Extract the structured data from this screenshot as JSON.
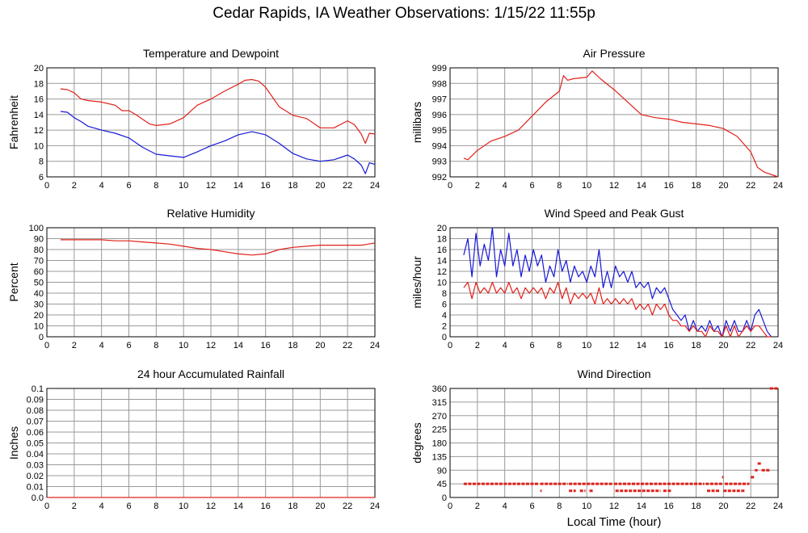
{
  "page_title": "Cedar Rapids, IA Weather Observations: 1/15/22 11:55p",
  "colors": {
    "red": "#e0201a",
    "blue": "#1818d8",
    "grid": "#9a9a9a",
    "frame": "#000000"
  },
  "chart_data": [
    {
      "id": "temp",
      "type": "line",
      "title": "Temperature and Dewpoint",
      "xlabel": "",
      "ylabel": "Fahrenheit",
      "xlim": [
        0,
        24
      ],
      "ylim": [
        6,
        20
      ],
      "xticks": [
        0,
        2,
        4,
        6,
        8,
        10,
        12,
        14,
        16,
        18,
        20,
        22,
        24
      ],
      "yticks": [
        6,
        8,
        10,
        12,
        14,
        16,
        18,
        20
      ],
      "grid": true,
      "series": [
        {
          "color": "red",
          "x": [
            1.0,
            1.5,
            2.0,
            2.5,
            3.0,
            4.0,
            5.0,
            5.5,
            6.0,
            6.5,
            7.0,
            7.5,
            8.0,
            9.0,
            10.0,
            11.0,
            12.0,
            13.0,
            14.0,
            14.5,
            15.0,
            15.5,
            16.0,
            17.0,
            18.0,
            19.0,
            20.0,
            21.0,
            22.0,
            22.5,
            23.0,
            23.3,
            23.6,
            24.0
          ],
          "y": [
            17.3,
            17.2,
            16.8,
            16.0,
            15.8,
            15.6,
            15.2,
            14.5,
            14.5,
            14.0,
            13.4,
            12.8,
            12.6,
            12.8,
            13.6,
            15.2,
            16.0,
            17.0,
            17.9,
            18.4,
            18.5,
            18.3,
            17.5,
            15.0,
            13.9,
            13.5,
            12.3,
            12.3,
            13.2,
            12.7,
            11.5,
            10.3,
            11.6,
            11.5
          ]
        },
        {
          "color": "blue",
          "x": [
            1.0,
            1.5,
            2.0,
            2.5,
            3.0,
            4.0,
            5.0,
            6.0,
            7.0,
            8.0,
            9.0,
            10.0,
            11.0,
            12.0,
            13.0,
            14.0,
            15.0,
            16.0,
            17.0,
            18.0,
            19.0,
            20.0,
            21.0,
            22.0,
            22.5,
            23.0,
            23.3,
            23.6,
            24.0
          ],
          "y": [
            14.4,
            14.3,
            13.6,
            13.1,
            12.5,
            12.0,
            11.6,
            11.0,
            9.8,
            8.9,
            8.7,
            8.5,
            9.2,
            10.0,
            10.6,
            11.4,
            11.8,
            11.4,
            10.3,
            9.0,
            8.3,
            8.0,
            8.2,
            8.8,
            8.3,
            7.5,
            6.4,
            7.8,
            7.6
          ]
        }
      ]
    },
    {
      "id": "pressure",
      "type": "line",
      "title": "Air Pressure",
      "xlabel": "",
      "ylabel": "millibars",
      "xlim": [
        0,
        24
      ],
      "ylim": [
        992,
        999
      ],
      "xticks": [
        0,
        2,
        4,
        6,
        8,
        10,
        12,
        14,
        16,
        18,
        20,
        22,
        24
      ],
      "yticks": [
        992,
        993,
        994,
        995,
        996,
        997,
        998,
        999
      ],
      "grid": true,
      "series": [
        {
          "color": "red",
          "x": [
            1.0,
            1.3,
            2.0,
            3.0,
            4.0,
            5.0,
            6.0,
            7.0,
            8.0,
            8.3,
            8.6,
            9.0,
            10.0,
            10.4,
            11.0,
            12.0,
            13.0,
            14.0,
            15.0,
            16.0,
            17.0,
            18.0,
            19.0,
            20.0,
            21.0,
            22.0,
            22.5,
            23.0,
            24.0
          ],
          "y": [
            993.2,
            993.1,
            993.7,
            994.3,
            994.6,
            995.0,
            995.9,
            996.8,
            997.5,
            998.5,
            998.2,
            998.3,
            998.4,
            998.8,
            998.3,
            997.6,
            996.8,
            996.0,
            995.8,
            995.7,
            995.5,
            995.4,
            995.3,
            995.1,
            994.6,
            993.6,
            992.6,
            992.3,
            992.0
          ]
        }
      ]
    },
    {
      "id": "humidity",
      "type": "line",
      "title": "Relative Humidity",
      "xlabel": "",
      "ylabel": "Percent",
      "xlim": [
        0,
        24
      ],
      "ylim": [
        0,
        100
      ],
      "xticks": [
        0,
        2,
        4,
        6,
        8,
        10,
        12,
        14,
        16,
        18,
        20,
        22,
        24
      ],
      "yticks": [
        0,
        10,
        20,
        30,
        40,
        50,
        60,
        70,
        80,
        90,
        100
      ],
      "grid": true,
      "series": [
        {
          "color": "red",
          "x": [
            1.0,
            2.0,
            3.0,
            4.0,
            5.0,
            6.0,
            7.0,
            8.0,
            9.0,
            10.0,
            11.0,
            12.0,
            13.0,
            14.0,
            15.0,
            16.0,
            17.0,
            18.0,
            19.0,
            20.0,
            21.0,
            22.0,
            23.0,
            23.5,
            24.0
          ],
          "y": [
            89,
            89,
            89,
            89,
            88,
            88,
            87,
            86,
            85,
            83,
            81,
            80,
            78,
            76,
            75,
            76,
            80,
            82,
            83,
            84,
            84,
            84,
            84,
            85,
            86
          ]
        }
      ]
    },
    {
      "id": "wind",
      "type": "line",
      "title": "Wind Speed and Peak Gust",
      "xlabel": "",
      "ylabel": "miles/hour",
      "xlim": [
        0,
        24
      ],
      "ylim": [
        0,
        20
      ],
      "xticks": [
        0,
        2,
        4,
        6,
        8,
        10,
        12,
        14,
        16,
        18,
        20,
        22,
        24
      ],
      "yticks": [
        0,
        2,
        4,
        6,
        8,
        10,
        12,
        14,
        16,
        18,
        20
      ],
      "grid": true,
      "series": [
        {
          "color": "blue",
          "x": [
            1.0,
            1.3,
            1.6,
            1.9,
            2.2,
            2.5,
            2.8,
            3.1,
            3.4,
            3.7,
            4.0,
            4.3,
            4.6,
            4.9,
            5.2,
            5.5,
            5.8,
            6.1,
            6.4,
            6.7,
            7.0,
            7.3,
            7.6,
            7.9,
            8.2,
            8.5,
            8.8,
            9.1,
            9.4,
            9.7,
            10.0,
            10.3,
            10.6,
            10.9,
            11.2,
            11.5,
            11.8,
            12.1,
            12.4,
            12.7,
            13.0,
            13.3,
            13.6,
            13.9,
            14.2,
            14.5,
            14.8,
            15.1,
            15.4,
            15.7,
            16.0,
            16.3,
            16.6,
            16.9,
            17.2,
            17.5,
            17.8,
            18.1,
            18.4,
            18.7,
            19.0,
            19.3,
            19.6,
            19.9,
            20.2,
            20.5,
            20.8,
            21.1,
            21.4,
            21.7,
            22.0,
            22.3,
            22.6,
            22.9,
            23.2,
            23.5
          ],
          "y": [
            15,
            18,
            11,
            19,
            13,
            17,
            14,
            20,
            11,
            16,
            13,
            19,
            13,
            16,
            11,
            15,
            12,
            16,
            13,
            15,
            10,
            13,
            11,
            16,
            12,
            14,
            10,
            13,
            11,
            12,
            10,
            13,
            11,
            16,
            9,
            12,
            9,
            13,
            11,
            12,
            10,
            12,
            9,
            10,
            9,
            10,
            7,
            9,
            8,
            9,
            7,
            5,
            4,
            3,
            4,
            1,
            3,
            1,
            2,
            1,
            3,
            1,
            2,
            0,
            3,
            1,
            3,
            1,
            1,
            3,
            1,
            4,
            5,
            3,
            1,
            0
          ]
        },
        {
          "color": "red",
          "x": [
            1.0,
            1.3,
            1.6,
            1.9,
            2.2,
            2.5,
            2.8,
            3.1,
            3.4,
            3.7,
            4.0,
            4.3,
            4.6,
            4.9,
            5.2,
            5.5,
            5.8,
            6.1,
            6.4,
            6.7,
            7.0,
            7.3,
            7.6,
            7.9,
            8.2,
            8.5,
            8.8,
            9.1,
            9.4,
            9.7,
            10.0,
            10.3,
            10.6,
            10.9,
            11.2,
            11.5,
            11.8,
            12.1,
            12.4,
            12.7,
            13.0,
            13.3,
            13.6,
            13.9,
            14.2,
            14.5,
            14.8,
            15.1,
            15.4,
            15.7,
            16.0,
            16.3,
            16.6,
            16.9,
            17.2,
            17.5,
            17.8,
            18.1,
            18.4,
            18.7,
            19.0,
            19.3,
            19.6,
            19.9,
            20.2,
            20.5,
            20.8,
            21.1,
            21.4,
            21.7,
            22.0,
            22.3,
            22.6,
            22.9,
            23.2,
            23.5
          ],
          "y": [
            9,
            10,
            7,
            10,
            8,
            9,
            8,
            10,
            8,
            9,
            8,
            10,
            8,
            9,
            7,
            9,
            8,
            9,
            8,
            9,
            7,
            9,
            8,
            10,
            7,
            9,
            6,
            8,
            7,
            8,
            7,
            8,
            6,
            9,
            6,
            7,
            6,
            7,
            6,
            7,
            6,
            7,
            5,
            6,
            5,
            6,
            4,
            6,
            5,
            6,
            4,
            3,
            3,
            2,
            2,
            1,
            2,
            1,
            1,
            0,
            2,
            1,
            1,
            0,
            2,
            0,
            2,
            0,
            1,
            2,
            1,
            2,
            2,
            1,
            0,
            0
          ]
        }
      ]
    },
    {
      "id": "rain",
      "type": "line",
      "title": "24 hour Accumulated Rainfall",
      "xlabel": "",
      "ylabel": "Inches",
      "xlim": [
        0,
        24
      ],
      "ylim": [
        0,
        0.1
      ],
      "xticks": [
        0,
        2,
        4,
        6,
        8,
        10,
        12,
        14,
        16,
        18,
        20,
        22,
        24
      ],
      "yticks": [
        0.0,
        0.01,
        0.02,
        0.03,
        0.04,
        0.05,
        0.06,
        0.07,
        0.08,
        0.09,
        0.1
      ],
      "ytick_labels": [
        "0.0",
        "0.01",
        "0.02",
        "0.03",
        "0.04",
        "0.05",
        "0.06",
        "0.07",
        "0.08",
        "0.09",
        "0.1"
      ],
      "grid": true,
      "series": [
        {
          "color": "red",
          "x": [
            0,
            24
          ],
          "y": [
            0,
            0
          ]
        }
      ]
    },
    {
      "id": "winddir",
      "type": "scatter",
      "title": "Wind Direction",
      "xlabel": "Local Time (hour)",
      "ylabel": "degrees",
      "xlim": [
        0,
        24
      ],
      "ylim": [
        0,
        360
      ],
      "xticks": [
        0,
        2,
        4,
        6,
        8,
        10,
        12,
        14,
        16,
        18,
        20,
        22,
        24
      ],
      "yticks": [
        0,
        45,
        90,
        135,
        180,
        225,
        270,
        315,
        360
      ],
      "grid": true,
      "series": [
        {
          "color": "red",
          "segments": [
            {
              "x": [
                1.0,
                6.5
              ],
              "y": 45
            },
            {
              "x": [
                6.6,
                8.6
              ],
              "y": 45
            },
            {
              "x": [
                8.7,
                11.9
              ],
              "y": 45
            },
            {
              "x": [
                12.0,
                18.6
              ],
              "y": 45
            },
            {
              "x": [
                18.7,
                19.9
              ],
              "y": 45
            },
            {
              "x": [
                20.1,
                21.9
              ],
              "y": 45
            },
            {
              "x": [
                6.6,
                6.7
              ],
              "y": 22
            },
            {
              "x": [
                8.7,
                9.2
              ],
              "y": 22
            },
            {
              "x": [
                9.5,
                9.9
              ],
              "y": 22
            },
            {
              "x": [
                10.2,
                10.5
              ],
              "y": 22
            },
            {
              "x": [
                12.1,
                15.4
              ],
              "y": 22
            },
            {
              "x": [
                15.6,
                16.2
              ],
              "y": 22
            },
            {
              "x": [
                18.8,
                19.7
              ],
              "y": 22
            },
            {
              "x": [
                20.0,
                21.6
              ],
              "y": 22
            },
            {
              "x": [
                19.9,
                20.0
              ],
              "y": 67
            },
            {
              "x": [
                22.0,
                22.3
              ],
              "y": 67
            },
            {
              "x": [
                22.3,
                22.5
              ],
              "y": 90
            },
            {
              "x": [
                22.5,
                22.8
              ],
              "y": 112
            },
            {
              "x": [
                22.8,
                23.4
              ],
              "y": 90
            },
            {
              "x": [
                23.4,
                24.0
              ],
              "y": 360
            }
          ]
        }
      ]
    }
  ]
}
